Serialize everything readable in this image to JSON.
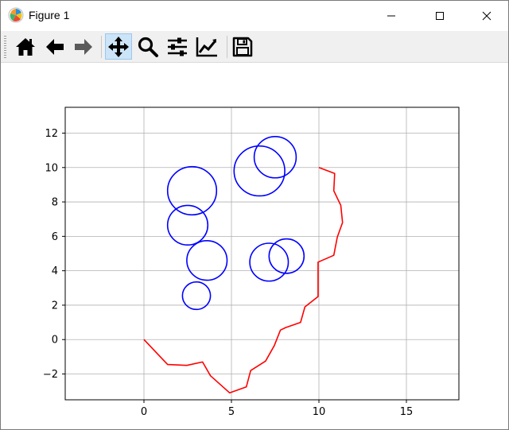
{
  "window": {
    "title": "Figure 1",
    "icon": "matplotlib-logo-icon",
    "controls": [
      "minimize-icon",
      "maximize-icon",
      "close-icon"
    ]
  },
  "toolbar": {
    "buttons": [
      {
        "name": "home",
        "icon": "home-icon",
        "active": false
      },
      {
        "name": "back",
        "icon": "arrow-left-icon",
        "active": false
      },
      {
        "name": "forward",
        "icon": "arrow-right-icon",
        "active": false
      },
      {
        "name": "pan",
        "icon": "move-icon",
        "active": true
      },
      {
        "name": "zoom",
        "icon": "magnifier-icon",
        "active": false
      },
      {
        "name": "configure-subplots",
        "icon": "sliders-icon",
        "active": false
      },
      {
        "name": "edit-axes",
        "icon": "chart-line-icon",
        "active": false
      },
      {
        "name": "save",
        "icon": "floppy-disk-icon",
        "active": false
      }
    ]
  },
  "chart_data": {
    "type": "line",
    "title": "",
    "xlabel": "",
    "ylabel": "",
    "xlim": [
      -4.5,
      18
    ],
    "ylim": [
      -3.5,
      13.5
    ],
    "xticks": [
      0,
      5,
      10,
      15
    ],
    "yticks": [
      -2,
      0,
      2,
      4,
      6,
      8,
      10,
      12
    ],
    "grid": true,
    "colors": {
      "path": "#ff0000",
      "obstacles": "#0000ff",
      "grid": "#b0b0b0"
    },
    "series": [
      {
        "type": "line",
        "color": "#ff0000",
        "points": [
          [
            0,
            0
          ],
          [
            1.35,
            -1.45
          ],
          [
            2.45,
            -1.5
          ],
          [
            3.35,
            -1.3
          ],
          [
            3.8,
            -2.1
          ],
          [
            4.9,
            -3.1
          ],
          [
            5.85,
            -2.75
          ],
          [
            6.1,
            -1.8
          ],
          [
            6.95,
            -1.25
          ],
          [
            7.45,
            -0.35
          ],
          [
            7.8,
            0.55
          ],
          [
            8.1,
            0.7
          ],
          [
            8.95,
            1.0
          ],
          [
            9.2,
            1.9
          ],
          [
            9.95,
            2.5
          ],
          [
            9.95,
            4.5
          ],
          [
            10.85,
            4.9
          ],
          [
            11.05,
            5.95
          ],
          [
            11.35,
            6.8
          ],
          [
            11.25,
            7.8
          ],
          [
            10.85,
            8.65
          ],
          [
            10.9,
            9.65
          ],
          [
            10.0,
            10.0
          ]
        ]
      }
    ],
    "circles": [
      {
        "cx": 2.75,
        "cy": 8.65,
        "r": 1.4
      },
      {
        "cx": 2.5,
        "cy": 6.65,
        "r": 1.15
      },
      {
        "cx": 3.6,
        "cy": 4.6,
        "r": 1.15
      },
      {
        "cx": 3.0,
        "cy": 2.55,
        "r": 0.8
      },
      {
        "cx": 6.6,
        "cy": 9.8,
        "r": 1.45
      },
      {
        "cx": 7.5,
        "cy": 10.6,
        "r": 1.2
      },
      {
        "cx": 7.15,
        "cy": 4.5,
        "r": 1.1
      },
      {
        "cx": 8.15,
        "cy": 4.85,
        "r": 1.0
      }
    ]
  }
}
